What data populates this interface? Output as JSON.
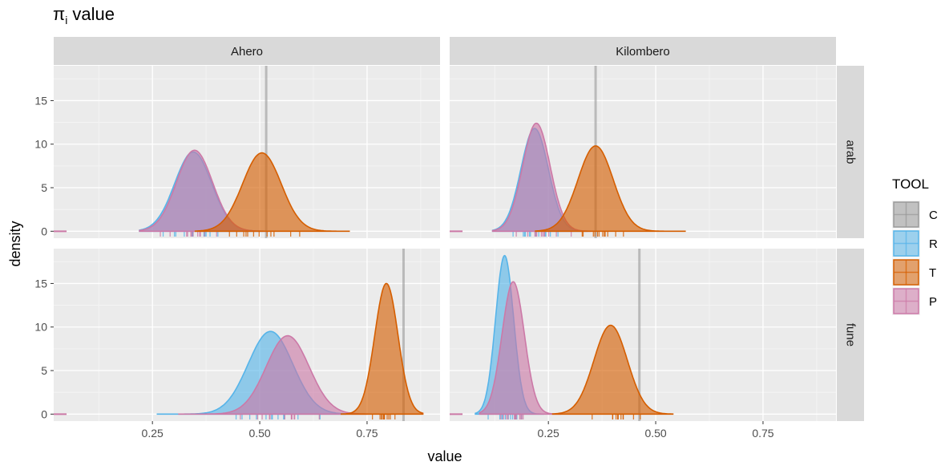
{
  "chart_data": {
    "type": "area",
    "title_main": "π",
    "title_sub": "i",
    "title_rest": " value",
    "xlabel": "value",
    "ylabel": "density",
    "x_ticks": [
      0.25,
      0.5,
      0.75
    ],
    "x_tick_labels": [
      "0.25",
      "0.50",
      "0.75"
    ],
    "y_ticks": [
      0,
      5,
      10,
      15
    ],
    "y_tick_labels": [
      "0",
      "5",
      "10",
      "15"
    ],
    "xlim": [
      0.02,
      0.92
    ],
    "ylim": [
      -0.8,
      19
    ],
    "grid": true,
    "legend": {
      "title": "TOOL",
      "position": "right",
      "entries": [
        {
          "label": "C",
          "color": "#999999"
        },
        {
          "label": "R",
          "color": "#56B4E9"
        },
        {
          "label": "T",
          "color": "#D55E00"
        },
        {
          "label": "P",
          "color": "#CC79A7"
        }
      ]
    },
    "columns": [
      "Ahero",
      "Kilombero"
    ],
    "rows": [
      "arab",
      "fune"
    ],
    "panels": [
      {
        "col": "Ahero",
        "row": "arab",
        "c_value": 0.515,
        "series": [
          {
            "tool": "R",
            "mean": 0.345,
            "sd": 0.043,
            "peak": 9.1,
            "min": 0.22,
            "max": 0.51
          },
          {
            "tool": "P",
            "mean": 0.348,
            "sd": 0.042,
            "peak": 9.3,
            "min": 0.22,
            "max": 0.52
          },
          {
            "tool": "T",
            "mean": 0.505,
            "sd": 0.045,
            "peak": 9.0,
            "min": 0.35,
            "max": 0.71
          }
        ]
      },
      {
        "col": "Kilombero",
        "row": "arab",
        "c_value": 0.36,
        "series": [
          {
            "tool": "R",
            "mean": 0.218,
            "sd": 0.032,
            "peak": 11.8,
            "min": 0.12,
            "max": 0.34
          },
          {
            "tool": "P",
            "mean": 0.222,
            "sd": 0.032,
            "peak": 12.4,
            "min": 0.12,
            "max": 0.35
          },
          {
            "tool": "T",
            "mean": 0.36,
            "sd": 0.041,
            "peak": 9.8,
            "min": 0.22,
            "max": 0.57
          }
        ]
      },
      {
        "col": "Ahero",
        "row": "fune",
        "c_value": 0.835,
        "series": [
          {
            "tool": "R",
            "mean": 0.525,
            "sd": 0.052,
            "peak": 9.5,
            "min": 0.26,
            "max": 0.7
          },
          {
            "tool": "P",
            "mean": 0.565,
            "sd": 0.05,
            "peak": 9.0,
            "min": 0.31,
            "max": 0.75
          },
          {
            "tool": "T",
            "mean": 0.795,
            "sd": 0.027,
            "peak": 15.0,
            "min": 0.69,
            "max": 0.88
          }
        ]
      },
      {
        "col": "Kilombero",
        "row": "fune",
        "c_value": 0.462,
        "series": [
          {
            "tool": "R",
            "mean": 0.148,
            "sd": 0.021,
            "peak": 18.2,
            "min": 0.08,
            "max": 0.24
          },
          {
            "tool": "P",
            "mean": 0.168,
            "sd": 0.026,
            "peak": 15.2,
            "min": 0.09,
            "max": 0.28
          },
          {
            "tool": "T",
            "mean": 0.395,
            "sd": 0.039,
            "peak": 10.2,
            "min": 0.26,
            "max": 0.54
          }
        ]
      }
    ]
  }
}
